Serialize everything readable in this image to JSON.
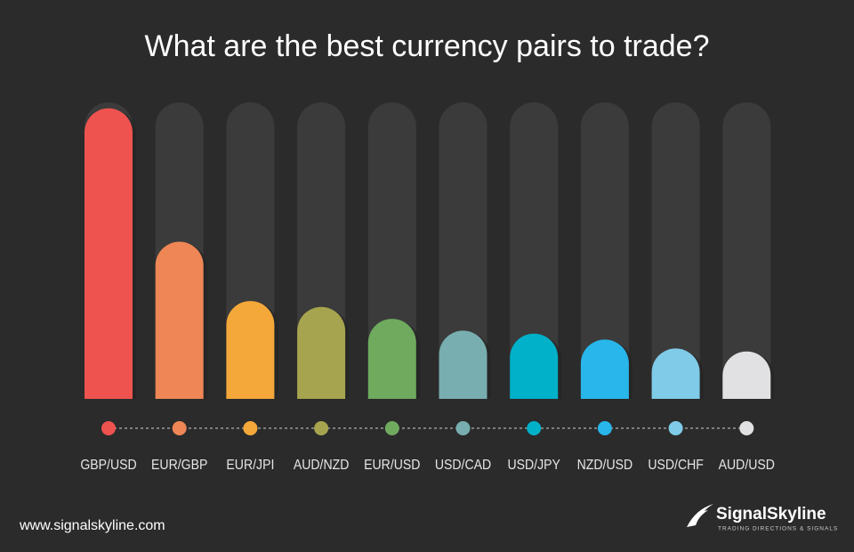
{
  "chart_data": {
    "type": "bar",
    "title": "What are the best currency pairs to trade?",
    "categories": [
      "GBP/USD",
      "EUR/GBP",
      "EUR/JPI",
      "AUD/NZD",
      "EUR/USD",
      "USD/CAD",
      "USD/JPY",
      "NZD/USD",
      "USD/CHF",
      "AUD/USD"
    ],
    "values": [
      98,
      53,
      33,
      31,
      27,
      23,
      22,
      20,
      17,
      16
    ],
    "colors": [
      "#ef5350",
      "#ee8755",
      "#f5a83a",
      "#a7a44f",
      "#6faa5e",
      "#78aeb0",
      "#00b1c9",
      "#28b6eb",
      "#7fcbe8",
      "#e1e1e3"
    ],
    "ylim": [
      0,
      100
    ]
  },
  "footer": {
    "url": "www.signalskyline.com",
    "brand": "SignalSkyline",
    "tagline": "TRADING DIRECTIONS & SIGNALS"
  }
}
